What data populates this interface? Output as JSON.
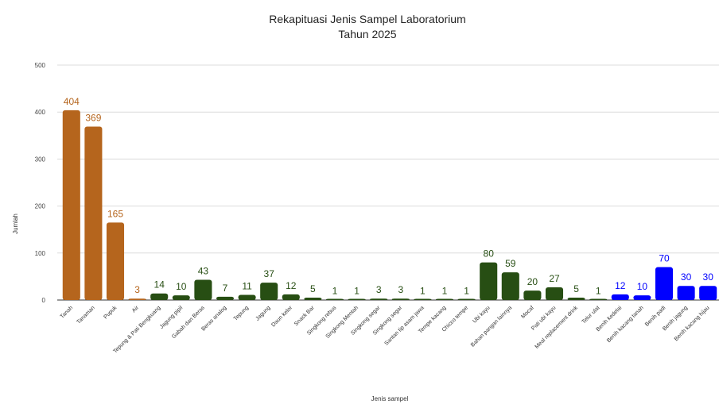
{
  "chart_data": {
    "type": "bar",
    "title": "Rekapituasi Jenis Sampel Laboratorium",
    "subtitle": "Tahun 2025",
    "xlabel": "Jenis sampel",
    "ylabel": "Jumlah",
    "ylim": [
      0,
      500
    ],
    "yticks": [
      0,
      100,
      200,
      300,
      400,
      500
    ],
    "grid": true,
    "data_labels": true,
    "colors": {
      "orange": "#b5651d",
      "green": "#274e13",
      "blue": "#0000ff"
    },
    "categories": [
      "Tanah",
      "Tanaman",
      "Pupuk",
      "Air",
      "Tepung & Pati Bengkuang",
      "Jagung pipil",
      "Gabah dan Beras",
      "Beras analog",
      "Tepung",
      "Jagung",
      "Daun kelor",
      "Snack Bar",
      "Singkong rebus",
      "Singkong Mentah",
      "Singkong segar",
      "Singkong segar",
      "Santan tip asam jawa",
      "Tempe kacang",
      "Chicco tempe",
      "Ubi kayu",
      "Bahan pangan lainnya",
      "Mocaf",
      "Pati ubi kayu",
      "Meal replacement drink",
      "Telur ulat",
      "Benih kedelai",
      "Benih kacang tanah",
      "Benih padi",
      "Benih jagung",
      "Benih kacang hijau"
    ],
    "values": [
      404,
      369,
      165,
      3,
      14,
      10,
      43,
      7,
      11,
      37,
      12,
      5,
      1,
      1,
      3,
      3,
      1,
      1,
      1,
      80,
      59,
      20,
      27,
      5,
      1,
      12,
      10,
      70,
      30,
      30
    ],
    "bar_colors": [
      "orange",
      "orange",
      "orange",
      "orange",
      "green",
      "green",
      "green",
      "green",
      "green",
      "green",
      "green",
      "green",
      "green",
      "green",
      "green",
      "green",
      "green",
      "green",
      "green",
      "green",
      "green",
      "green",
      "green",
      "green",
      "green",
      "blue",
      "blue",
      "blue",
      "blue",
      "blue"
    ]
  }
}
